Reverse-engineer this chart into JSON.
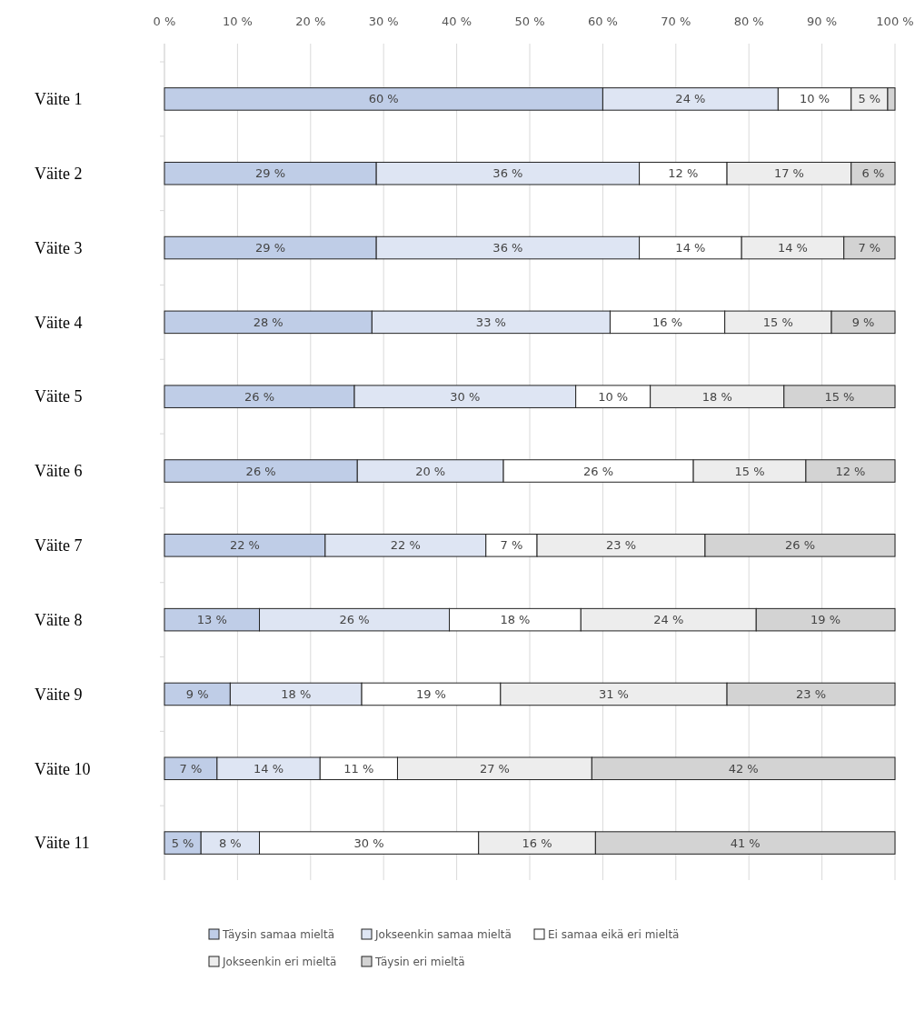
{
  "chart_data": {
    "type": "bar",
    "orientation": "horizontal",
    "stacked": true,
    "grid": "x",
    "legend": "bottom",
    "categories": [
      "Väite 1",
      "Väite 2",
      "Väite 3",
      "Väite 4",
      "Väite 5",
      "Väite 6",
      "Väite 7",
      "Väite 8",
      "Väite 9",
      "Väite 10",
      "Väite 11"
    ],
    "xlim": [
      0,
      100
    ],
    "xticks": [
      {
        "value": 0,
        "label": "0 %"
      },
      {
        "value": 10,
        "label": "10 %"
      },
      {
        "value": 20,
        "label": "20 %"
      },
      {
        "value": 30,
        "label": "30 %"
      },
      {
        "value": 40,
        "label": "40 %"
      },
      {
        "value": 50,
        "label": "50 %"
      },
      {
        "value": 60,
        "label": "60 %"
      },
      {
        "value": 70,
        "label": "70 %"
      },
      {
        "value": 80,
        "label": "80 %"
      },
      {
        "value": 90,
        "label": "90 %"
      },
      {
        "value": 100,
        "label": "100 %"
      }
    ],
    "series": [
      {
        "name": "Täysin samaa mieltä",
        "color": "#bfcde7",
        "values": [
          60,
          29,
          29,
          28.4,
          26.0,
          26.4,
          22,
          13,
          9,
          7.2,
          5
        ],
        "value_labels": [
          "60 %",
          "29 %",
          "29 %",
          "28 %",
          "26 %",
          "26 %",
          "22 %",
          "13 %",
          "9 %",
          "7 %",
          "5 %"
        ]
      },
      {
        "name": "Jokseenkin samaa mieltä",
        "color": "#dee5f3",
        "values": [
          24,
          36,
          36,
          32.6,
          30.3,
          20.0,
          22,
          26,
          18,
          14.1,
          8
        ],
        "value_labels": [
          "24 %",
          "36 %",
          "36 %",
          "33 %",
          "30 %",
          "20 %",
          "22 %",
          "26 %",
          "18 %",
          "14 %",
          "8 %"
        ]
      },
      {
        "name": "Ei samaa eikä eri mieltä",
        "color": "#ffffff",
        "values": [
          10,
          12,
          14,
          15.7,
          10.2,
          26.0,
          7,
          18,
          19,
          10.6,
          30
        ],
        "value_labels": [
          "10 %",
          "12 %",
          "14 %",
          "16 %",
          "10 %",
          "26 %",
          "7 %",
          "18 %",
          "19 %",
          "11 %",
          "30 %"
        ]
      },
      {
        "name": "Jokseenkin eri mieltä",
        "color": "#ededed",
        "values": [
          5,
          17,
          14,
          14.6,
          18.3,
          15.4,
          23,
          24,
          31,
          26.6,
          16
        ],
        "value_labels": [
          "5 %",
          "17 %",
          "14 %",
          "15 %",
          "18 %",
          "15 %",
          "23 %",
          "24 %",
          "31 %",
          "27 %",
          "16 %"
        ]
      },
      {
        "name": "Täysin eri mieltä",
        "color": "#d3d3d3",
        "values": [
          1,
          6,
          7,
          8.7,
          15.2,
          12.2,
          26,
          19,
          23,
          41.5,
          41
        ],
        "value_labels": [
          null,
          "6 %",
          "7 %",
          "9 %",
          "15 %",
          "12 %",
          "26 %",
          "19 %",
          "23 %",
          "42 %",
          "41 %"
        ]
      }
    ]
  }
}
